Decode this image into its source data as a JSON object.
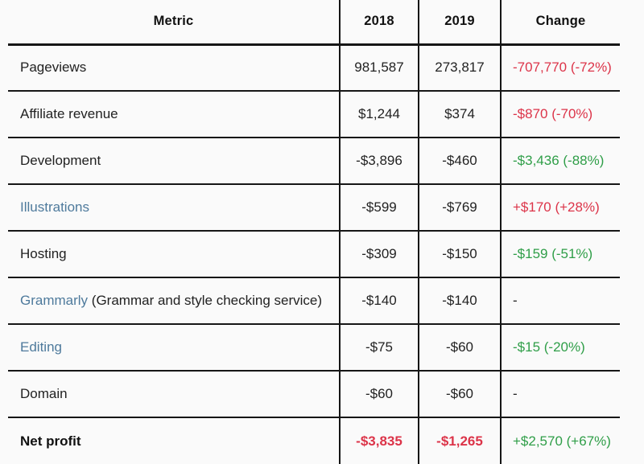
{
  "theme": {
    "bg": "#fafafa",
    "text": "#222222",
    "heading": "#111111",
    "border": "#161616",
    "red": "#dc3449",
    "green": "#2f9e48",
    "link": "#4e7a9c"
  },
  "table": {
    "headers": [
      "Metric",
      "2018",
      "2019",
      "Change"
    ],
    "rows": [
      {
        "metric": "Pageviews",
        "v2018": "981,587",
        "v2019": "273,817",
        "change": "-707,770 (-72%)",
        "change_color": "red"
      },
      {
        "metric": "Affiliate revenue",
        "v2018": "$1,244",
        "v2019": "$374",
        "change": "-$870 (-70%)",
        "change_color": "red"
      },
      {
        "metric": "Development",
        "v2018": "-$3,896",
        "v2019": "-$460",
        "change": "-$3,436 (-88%)",
        "change_color": "green"
      },
      {
        "metric": "Illustrations",
        "metric_style": "link",
        "v2018": "-$599",
        "v2019": "-$769",
        "change": "+$170 (+28%)",
        "change_color": "red"
      },
      {
        "metric": "Hosting",
        "v2018": "-$309",
        "v2019": "-$150",
        "change": "-$159 (-51%)",
        "change_color": "green"
      },
      {
        "metric": "Grammarly",
        "metric_style": "link",
        "metric_suffix": " (Grammar and style checking service)",
        "v2018": "-$140",
        "v2019": "-$140",
        "change": "-",
        "change_color": "dark"
      },
      {
        "metric": "Editing",
        "metric_style": "link",
        "v2018": "-$75",
        "v2019": "-$60",
        "change": "-$15 (-20%)",
        "change_color": "green"
      },
      {
        "metric": "Domain",
        "v2018": "-$60",
        "v2019": "-$60",
        "change": "-",
        "change_color": "dark"
      },
      {
        "metric": "Net profit",
        "metric_style": "bold",
        "v2018": "-$3,835",
        "v2019": "-$1,265",
        "value_color": "red-bold",
        "change": "+$2,570 (+67%)",
        "change_color": "green"
      }
    ]
  },
  "chart_data": {
    "type": "table",
    "columns": [
      "Metric",
      "2018",
      "2019",
      "Change"
    ],
    "rows": [
      [
        "Pageviews",
        "981,587",
        "273,817",
        "-707,770 (-72%)"
      ],
      [
        "Affiliate revenue",
        "$1,244",
        "$374",
        "-$870 (-70%)"
      ],
      [
        "Development",
        "-$3,896",
        "-$460",
        "-$3,436 (-88%)"
      ],
      [
        "Illustrations",
        "-$599",
        "-$769",
        "+$170 (+28%)"
      ],
      [
        "Hosting",
        "-$309",
        "-$150",
        "-$159 (-51%)"
      ],
      [
        "Grammarly (Grammar and style checking service)",
        "-$140",
        "-$140",
        "-"
      ],
      [
        "Editing",
        "-$75",
        "-$60",
        "-$15 (-20%)"
      ],
      [
        "Domain",
        "-$60",
        "-$60",
        "-"
      ],
      [
        "Net profit",
        "-$3,835",
        "-$1,265",
        "+$2,570 (+67%)"
      ]
    ]
  }
}
